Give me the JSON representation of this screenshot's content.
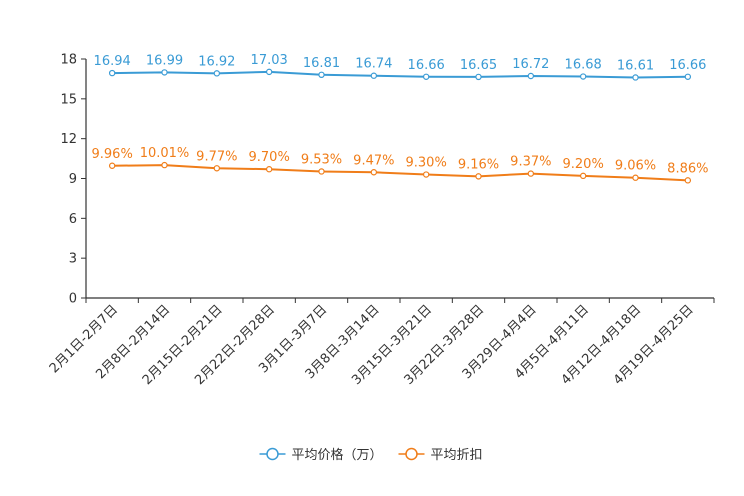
{
  "chart_data": {
    "type": "line",
    "categories": [
      "2月1日-2月7日",
      "2月8日-2月14日",
      "2月15日-2月21日",
      "2月22日-2月28日",
      "3月1日-3月7日",
      "3月8日-3月14日",
      "3月15日-3月21日",
      "3月22日-3月28日",
      "3月29日-4月4日",
      "4月5日-4月11日",
      "4月12日-4月18日",
      "4月19日-4月25日"
    ],
    "series": [
      {
        "name": "平均价格（万）",
        "color": "#3A9BD5",
        "values": [
          16.94,
          16.99,
          16.92,
          17.03,
          16.81,
          16.74,
          16.66,
          16.65,
          16.72,
          16.68,
          16.61,
          16.66
        ],
        "labels": [
          "16.94",
          "16.99",
          "16.92",
          "17.03",
          "16.81",
          "16.74",
          "16.66",
          "16.65",
          "16.72",
          "16.68",
          "16.61",
          "16.66"
        ]
      },
      {
        "name": "平均折扣",
        "color": "#F07D19",
        "values": [
          9.96,
          10.01,
          9.77,
          9.7,
          9.53,
          9.47,
          9.3,
          9.16,
          9.37,
          9.2,
          9.06,
          8.86
        ],
        "labels": [
          "9.96%",
          "10.01%",
          "9.77%",
          "9.70%",
          "9.53%",
          "9.47%",
          "9.30%",
          "9.16%",
          "9.37%",
          "9.20%",
          "9.06%",
          "8.86%"
        ]
      }
    ],
    "y_ticks": [
      "0",
      "3",
      "6",
      "9",
      "12",
      "15",
      "18"
    ],
    "y_tick_values": [
      0,
      3,
      6,
      9,
      12,
      15,
      18
    ],
    "ylim": [
      0,
      18
    ],
    "title": "",
    "xlabel": "",
    "ylabel": "",
    "legend_position": "bottom-center",
    "grid": false,
    "axis_color": "#333333"
  }
}
